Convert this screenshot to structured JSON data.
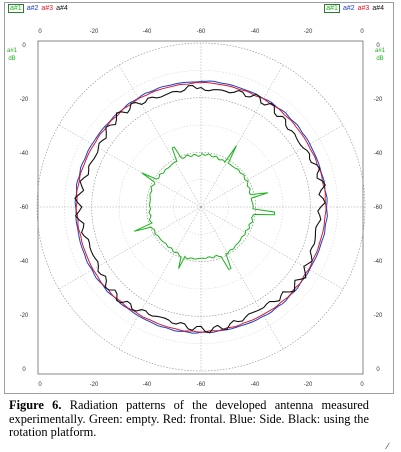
{
  "legend": {
    "left": [
      {
        "label": "a#1",
        "color": "#1db31d",
        "boxed": true
      },
      {
        "label": "a#2",
        "color": "#1a3fd0",
        "boxed": false
      },
      {
        "label": "a#3",
        "color": "#d81b2a",
        "boxed": false
      },
      {
        "label": "a#4",
        "color": "#111111",
        "boxed": false
      }
    ],
    "right": [
      {
        "label": "a#1",
        "color": "#1db31d",
        "boxed": true
      },
      {
        "label": "a#2",
        "color": "#1a3fd0",
        "boxed": false
      },
      {
        "label": "a#3",
        "color": "#d81b2a",
        "boxed": false
      },
      {
        "label": "a#4",
        "color": "#111111",
        "boxed": false
      }
    ]
  },
  "axis_title": {
    "top": "a#1",
    "bottom": "dB"
  },
  "caption": {
    "label": "Figure 6.",
    "text": "Radiation patterns of the developed antenna measured experimentally. Green: empty. Red: frontal. Blue: Side. Black: using the rotation platform."
  },
  "corner_mark": "∕",
  "chart_data": {
    "type": "polar",
    "units": "dB",
    "r_range": [
      -60,
      0
    ],
    "ring_levels": [
      -60,
      -40,
      -20,
      0
    ],
    "top_ticks": [
      "0",
      "-20",
      "-40",
      "-60",
      "-40",
      "-20",
      "0"
    ],
    "bottom_ticks": [
      "0",
      "-20",
      "-40",
      "-60",
      "-40",
      "-20",
      "0"
    ],
    "side_ticks": [
      "0",
      "-20",
      "-40",
      "-60",
      "-40",
      "-20",
      "0"
    ],
    "grid": true,
    "series": [
      {
        "name": "a#1",
        "color": "#1db31d",
        "r_base": -41,
        "spikes": [
          {
            "angle": 30,
            "r": -34
          },
          {
            "angle": 78,
            "r": -35
          },
          {
            "angle": 95,
            "r": -33
          },
          {
            "angle": 155,
            "r": -35
          },
          {
            "angle": 200,
            "r": -36
          },
          {
            "angle": 250,
            "r": -34
          },
          {
            "angle": 300,
            "r": -35
          },
          {
            "angle": 335,
            "r": -36
          }
        ]
      },
      {
        "name": "a#2",
        "color": "#1a3fd0",
        "r_base": -14
      },
      {
        "name": "a#3",
        "color": "#d81b2a",
        "r_base": -14.5
      },
      {
        "name": "a#4",
        "color": "#111111",
        "r_base": -16
      }
    ]
  }
}
